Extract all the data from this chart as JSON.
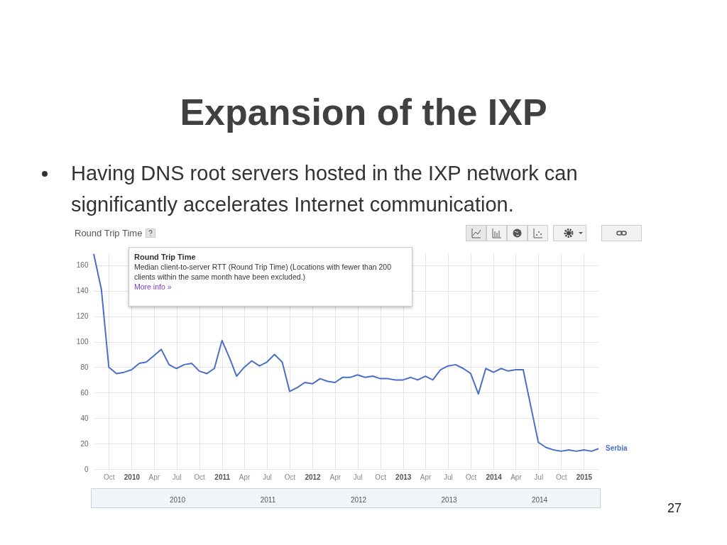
{
  "chart_data": {
    "type": "line",
    "title": "Expansion of the IXP",
    "subtitle": "Having DNS root servers hosted in the IXP network can significantly accelerates Internet communication.",
    "annotations": [
      "Round Trip Time",
      "Round Trip Time",
      "Median client-to-server RTT (Round Trip Time) (Locations with fewer than 200 clients within the same month have been excluded.)",
      "More info »",
      "2010",
      "2011",
      "2012",
      "2013",
      "2014",
      "27"
    ],
    "x": [
      "2009-08",
      "2009-09",
      "2009-10",
      "2009-11",
      "2009-12",
      "2010-01",
      "2010-02",
      "2010-03",
      "2010-04",
      "2010-05",
      "2010-06",
      "2010-07",
      "2010-08",
      "2010-09",
      "2010-10",
      "2010-11",
      "2010-12",
      "2011-01",
      "2011-02",
      "2011-03",
      "2011-04",
      "2011-05",
      "2011-06",
      "2011-07",
      "2011-08",
      "2011-09",
      "2011-10",
      "2011-11",
      "2011-12",
      "2012-01",
      "2012-02",
      "2012-03",
      "2012-04",
      "2012-05",
      "2012-06",
      "2012-07",
      "2012-08",
      "2012-09",
      "2012-10",
      "2012-11",
      "2012-12",
      "2013-01",
      "2013-02",
      "2013-03",
      "2013-04",
      "2013-05",
      "2013-06",
      "2013-07",
      "2013-08",
      "2013-09",
      "2013-10",
      "2013-11",
      "2013-12",
      "2014-01",
      "2014-02",
      "2014-03",
      "2014-04",
      "2014-05",
      "2014-06",
      "2014-07",
      "2014-08",
      "2014-09",
      "2014-10",
      "2014-11",
      "2014-12",
      "2015-01",
      "2015-02",
      "2015-03"
    ],
    "series": [
      {
        "name": "Serbia",
        "color": "#4a6fc7",
        "values": [
          169,
          141,
          80,
          75,
          76,
          78,
          83,
          84,
          89,
          94,
          82,
          79,
          82,
          83,
          77,
          75,
          79,
          101,
          87,
          73,
          80,
          85,
          81,
          84,
          90,
          84,
          61,
          64,
          68,
          67,
          71,
          69,
          68,
          72,
          72,
          74,
          72,
          73,
          71,
          71,
          70,
          70,
          72,
          70,
          73,
          70,
          78,
          81,
          82,
          79,
          75,
          59,
          79,
          76,
          79,
          77,
          78,
          78,
          49,
          21,
          17,
          15,
          14,
          15,
          14,
          15,
          14,
          16
        ]
      }
    ],
    "xlim": [
      "2009-08",
      "2015-03"
    ],
    "xticks": [
      {
        "value": "2009-10",
        "label": "Oct"
      },
      {
        "value": "2010-01",
        "label": "2010"
      },
      {
        "value": "2010-04",
        "label": "Apr"
      },
      {
        "value": "2010-07",
        "label": "Jul"
      },
      {
        "value": "2010-10",
        "label": "Oct"
      },
      {
        "value": "2011-01",
        "label": "2011"
      },
      {
        "value": "2011-04",
        "label": "Apr"
      },
      {
        "value": "2011-07",
        "label": "Jul"
      },
      {
        "value": "2011-10",
        "label": "Oct"
      },
      {
        "value": "2012-01",
        "label": "2012"
      },
      {
        "value": "2012-04",
        "label": "Apr"
      },
      {
        "value": "2012-07",
        "label": "Jul"
      },
      {
        "value": "2012-10",
        "label": "Oct"
      },
      {
        "value": "2013-01",
        "label": "2013"
      },
      {
        "value": "2013-04",
        "label": "Apr"
      },
      {
        "value": "2013-07",
        "label": "Jul"
      },
      {
        "value": "2013-10",
        "label": "Oct"
      },
      {
        "value": "2014-01",
        "label": "2014"
      },
      {
        "value": "2014-04",
        "label": "Apr"
      },
      {
        "value": "2014-07",
        "label": "Jul"
      },
      {
        "value": "2014-10",
        "label": "Oct"
      },
      {
        "value": "2015-01",
        "label": "2015"
      }
    ],
    "ylim": [
      0,
      170
    ],
    "yticks": [
      0,
      20,
      40,
      60,
      80,
      100,
      120,
      140,
      160
    ],
    "grid": true
  }
}
